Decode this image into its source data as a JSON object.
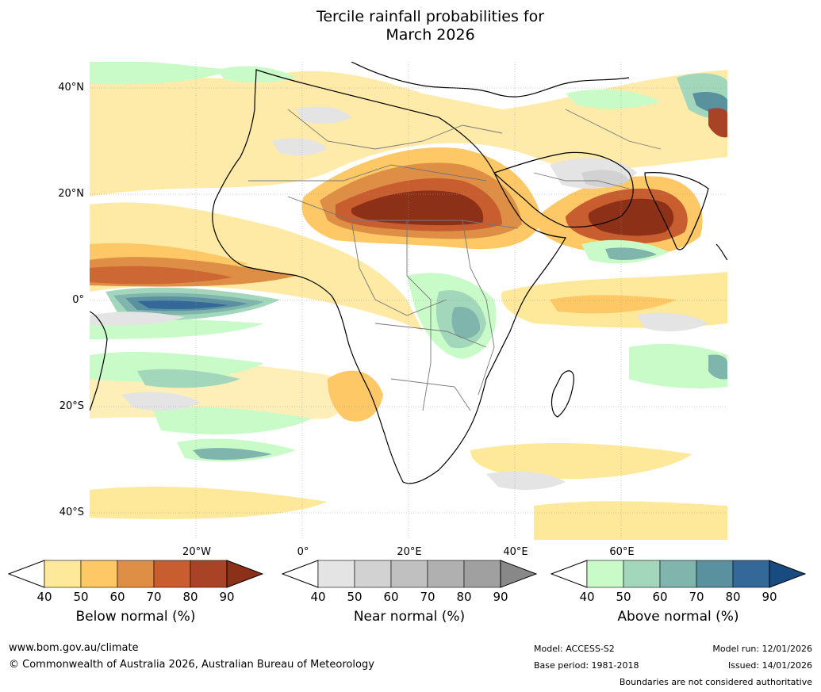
{
  "title": {
    "line1": "Tercile rainfall probabilities for",
    "line2": "March 2026"
  },
  "map": {
    "lat_labels": [
      "40°N",
      "20°N",
      "0°",
      "20°S",
      "40°S"
    ],
    "lon_labels": [
      "20°W",
      "0°",
      "20°E",
      "40°E",
      "60°E"
    ]
  },
  "legends": [
    {
      "title": "Below normal (%)",
      "ticks": [
        "40",
        "50",
        "60",
        "70",
        "80",
        "90"
      ],
      "colors": [
        "#ffffff",
        "#fee89a",
        "#fdc865",
        "#de8e45",
        "#c85e30",
        "#a84425",
        "#8c3118"
      ]
    },
    {
      "title": "Near normal (%)",
      "ticks": [
        "40",
        "50",
        "60",
        "70",
        "80",
        "90"
      ],
      "colors": [
        "#ffffff",
        "#e4e4e4",
        "#d2d2d2",
        "#c0c0c0",
        "#b0b0b0",
        "#a0a0a0",
        "#888888"
      ]
    },
    {
      "title": "Above normal (%)",
      "ticks": [
        "40",
        "50",
        "60",
        "70",
        "80",
        "90"
      ],
      "colors": [
        "#ffffff",
        "#c9fbc9",
        "#a2d7bb",
        "#80b5ad",
        "#5a919f",
        "#336898",
        "#1a4b80"
      ]
    }
  ],
  "footer": {
    "website": "www.bom.gov.au/climate",
    "copyright": "© Commonwealth of Australia 2026, Australian Bureau of Meteorology",
    "model": "Model: ACCESS-S2",
    "base_period": "Base period: 1981-2018",
    "model_run": "Model run: 12/01/2026",
    "issued": "Issued: 14/01/2026",
    "boundaries": "Boundaries are not considered authoritative"
  }
}
